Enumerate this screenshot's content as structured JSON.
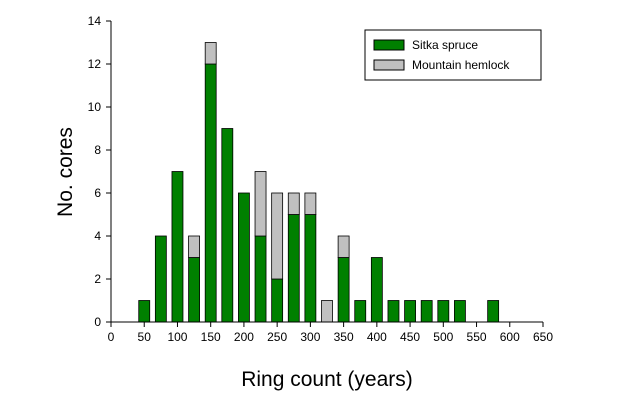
{
  "chart_data": {
    "type": "bar",
    "stacked": true,
    "title": "",
    "xlabel": "Ring count (years)",
    "ylabel": "No. cores",
    "xlim": [
      0,
      650
    ],
    "ylim": [
      0,
      14
    ],
    "xticks": [
      0,
      50,
      100,
      150,
      200,
      250,
      300,
      350,
      400,
      450,
      500,
      550,
      600,
      650
    ],
    "yticks": [
      0,
      2,
      4,
      6,
      8,
      10,
      12,
      14
    ],
    "x": [
      50,
      75,
      100,
      125,
      150,
      175,
      200,
      225,
      250,
      275,
      300,
      325,
      350,
      375,
      400,
      425,
      450,
      475,
      500,
      525,
      575
    ],
    "series": [
      {
        "name": "Sitka spruce",
        "color": "#008000",
        "values": [
          1,
          4,
          7,
          3,
          12,
          9,
          6,
          4,
          2,
          5,
          5,
          0,
          3,
          1,
          3,
          1,
          1,
          1,
          1,
          1,
          1
        ]
      },
      {
        "name": "Mountain hemlock",
        "color": "#c0c0c0",
        "values": [
          0,
          0,
          0,
          1,
          1,
          0,
          0,
          3,
          4,
          1,
          1,
          1,
          1,
          0,
          0,
          0,
          0,
          0,
          0,
          0,
          0
        ]
      }
    ],
    "legend": "top-right",
    "grid": false
  }
}
